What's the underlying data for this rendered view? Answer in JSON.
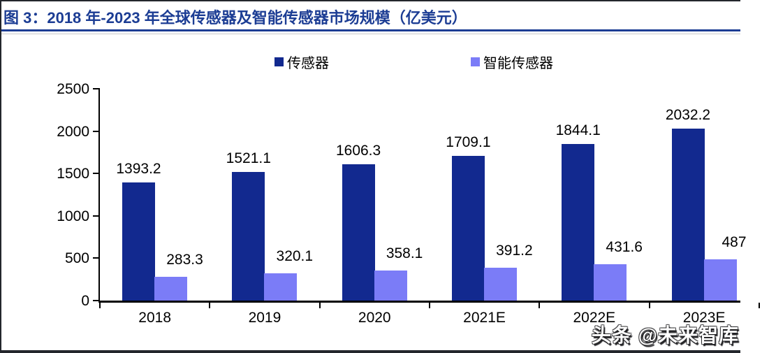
{
  "page": {
    "watermark": "头条 @未来智库"
  },
  "colors": {
    "caption_text": "#1c3d94",
    "caption_rule": "#1c3d94",
    "sensor_bar": "#12298f",
    "smart_sensor_bar": "#7b7cf7",
    "axis": "#000000"
  },
  "chart_data": {
    "type": "bar",
    "title": "图 3：2018 年-2023 年全球传感器及智能传感器市场规模（亿美元）",
    "categories": [
      "2018",
      "2019",
      "2020",
      "2021E",
      "2022E",
      "2023E"
    ],
    "series": [
      {
        "name": "传感器",
        "color": "#12298f",
        "values": [
          1393.2,
          1521.1,
          1606.3,
          1709.1,
          1844.1,
          2032.2
        ],
        "labels": [
          "1393.2",
          "1521.1",
          "1606.3",
          "1709.1",
          "1844.1",
          "2032.2"
        ]
      },
      {
        "name": "智能传感器",
        "color": "#7b7cf7",
        "values": [
          283.3,
          320.1,
          358.1,
          391.2,
          431.6,
          487
        ],
        "labels": [
          "283.3",
          "320.1",
          "358.1",
          "391.2",
          "431.6",
          "487"
        ]
      }
    ],
    "xlabel": "",
    "ylabel": "",
    "ylim": [
      0,
      2500
    ],
    "yticks": [
      0,
      500,
      1000,
      1500,
      2000,
      2500
    ],
    "grid": false,
    "legend_position": "top"
  }
}
